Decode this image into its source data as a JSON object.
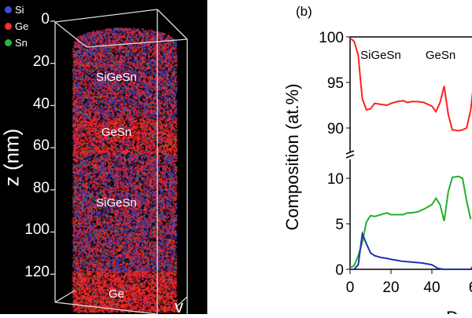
{
  "panel_a": {
    "legend": [
      {
        "label": "Si",
        "color": "#3a4fd0"
      },
      {
        "label": "Ge",
        "color": "#ff2a2a"
      },
      {
        "label": "Sn",
        "color": "#2cb33a"
      }
    ],
    "z_axis_label": "z (nm)",
    "z_ticks": [
      "0",
      "20",
      "40",
      "60",
      "80",
      "100",
      "120"
    ],
    "layers": [
      "SiGeSn",
      "GeSn",
      "SiGeSn",
      "Ge"
    ],
    "corner_label": "v"
  },
  "chart_data": {
    "type": "line",
    "panel_label": "(b)",
    "ylabel": "Composition (at.%)",
    "xlabel": "Dep",
    "x_ticks": [
      "0",
      "20",
      "40",
      "6"
    ],
    "xlim": [
      0,
      60
    ],
    "y_upper_ticks": [
      "100",
      "95",
      "90"
    ],
    "y_lower_ticks": [
      "10",
      "5",
      "0"
    ],
    "ylim_upper": [
      88,
      100
    ],
    "ylim_lower": [
      0,
      12
    ],
    "axis_break": true,
    "annotations": [
      "SiGeSn",
      "GeSn"
    ],
    "series": [
      {
        "color": "#ff2020",
        "panel": "upper",
        "x": [
          0,
          1,
          2,
          4,
          5,
          6,
          8,
          10,
          12,
          15,
          18,
          20,
          23,
          26,
          28,
          30,
          33,
          36,
          40,
          42,
          44,
          46,
          48,
          50,
          53,
          55,
          57,
          59,
          60
        ],
        "values": [
          99.8,
          99.7,
          99.5,
          98,
          95.5,
          93.2,
          92,
          92.1,
          92.7,
          92.6,
          92.5,
          92.7,
          92.9,
          93,
          92.8,
          92.9,
          92.9,
          92.8,
          92.4,
          91.8,
          92.8,
          94.6,
          91.5,
          89.8,
          89.7,
          89.8,
          90,
          92,
          94
        ]
      },
      {
        "color": "#22b030",
        "panel": "lower",
        "x": [
          0,
          2,
          4,
          6,
          8,
          10,
          12,
          15,
          18,
          20,
          23,
          26,
          28,
          30,
          33,
          36,
          40,
          42,
          44,
          46,
          48,
          50,
          53,
          55,
          57,
          59
        ],
        "values": [
          0.2,
          0.4,
          1.5,
          3,
          5.2,
          5.9,
          5.8,
          6,
          6.2,
          6,
          6,
          6,
          6.2,
          6.2,
          6.3,
          6.6,
          7.1,
          7.8,
          7.1,
          5.3,
          8.5,
          10.1,
          10.2,
          10,
          7.5,
          5.5
        ]
      },
      {
        "color": "#2030b0",
        "panel": "lower",
        "x": [
          0,
          2,
          4,
          6,
          8,
          10,
          12,
          15,
          18,
          20,
          25,
          30,
          35,
          40,
          43,
          46,
          55,
          59,
          60
        ],
        "values": [
          0,
          0,
          0.5,
          3.9,
          2.8,
          1.8,
          1.5,
          1.3,
          1.2,
          1.1,
          0.9,
          0.8,
          0.7,
          0.5,
          0.1,
          0,
          0,
          0,
          0.3
        ]
      }
    ]
  }
}
